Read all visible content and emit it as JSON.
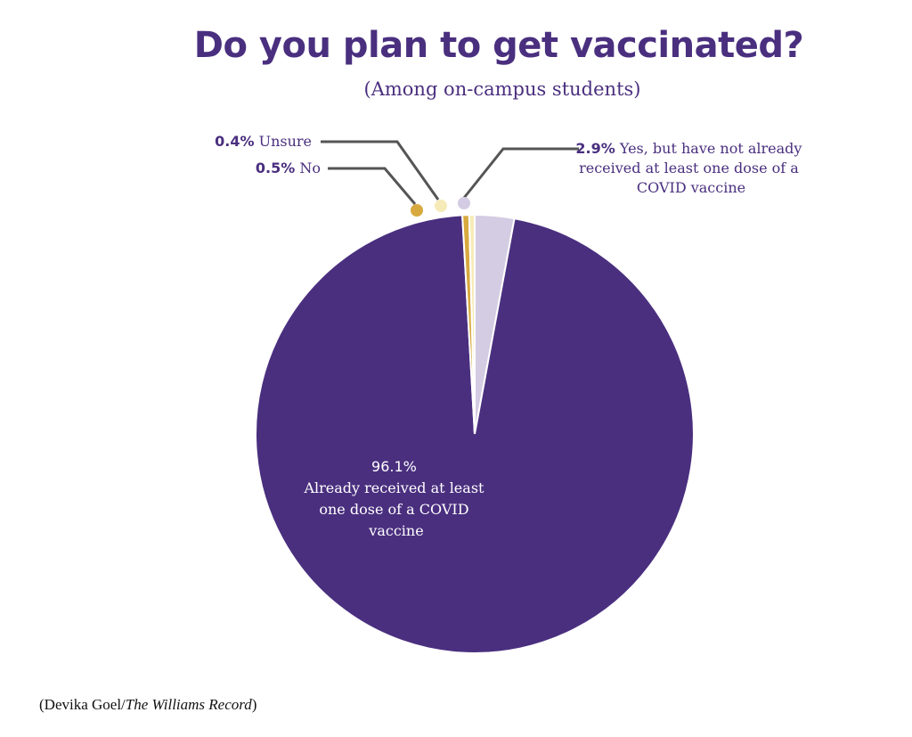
{
  "title": "Do you plan to get vaccinated?",
  "subtitle": "(Among on-campus students)",
  "credit": {
    "author": "Devika Goel/",
    "publication": "The Williams Record"
  },
  "chart_data": {
    "type": "pie",
    "title": "Do you plan to get vaccinated?",
    "subtitle": "(Among on-campus students)",
    "slices": [
      {
        "pct_label": "2.9%",
        "value": 2.9,
        "label_lines": [
          "Yes, but have not already",
          "received at least one dose of a",
          "COVID vaccine"
        ],
        "color": "#d4cce3"
      },
      {
        "pct_label": "96.1%",
        "value": 96.1,
        "label_lines": [
          "Already received at least",
          "one dose of a COVID",
          "vaccine"
        ],
        "color": "#4a2f7f"
      },
      {
        "pct_label": "0.5%",
        "value": 0.5,
        "label_lines": [
          "No"
        ],
        "color": "#d7a93e"
      },
      {
        "pct_label": "0.4%",
        "value": 0.4,
        "label_lines": [
          "Unsure"
        ],
        "color": "#f6ebb8"
      }
    ]
  }
}
